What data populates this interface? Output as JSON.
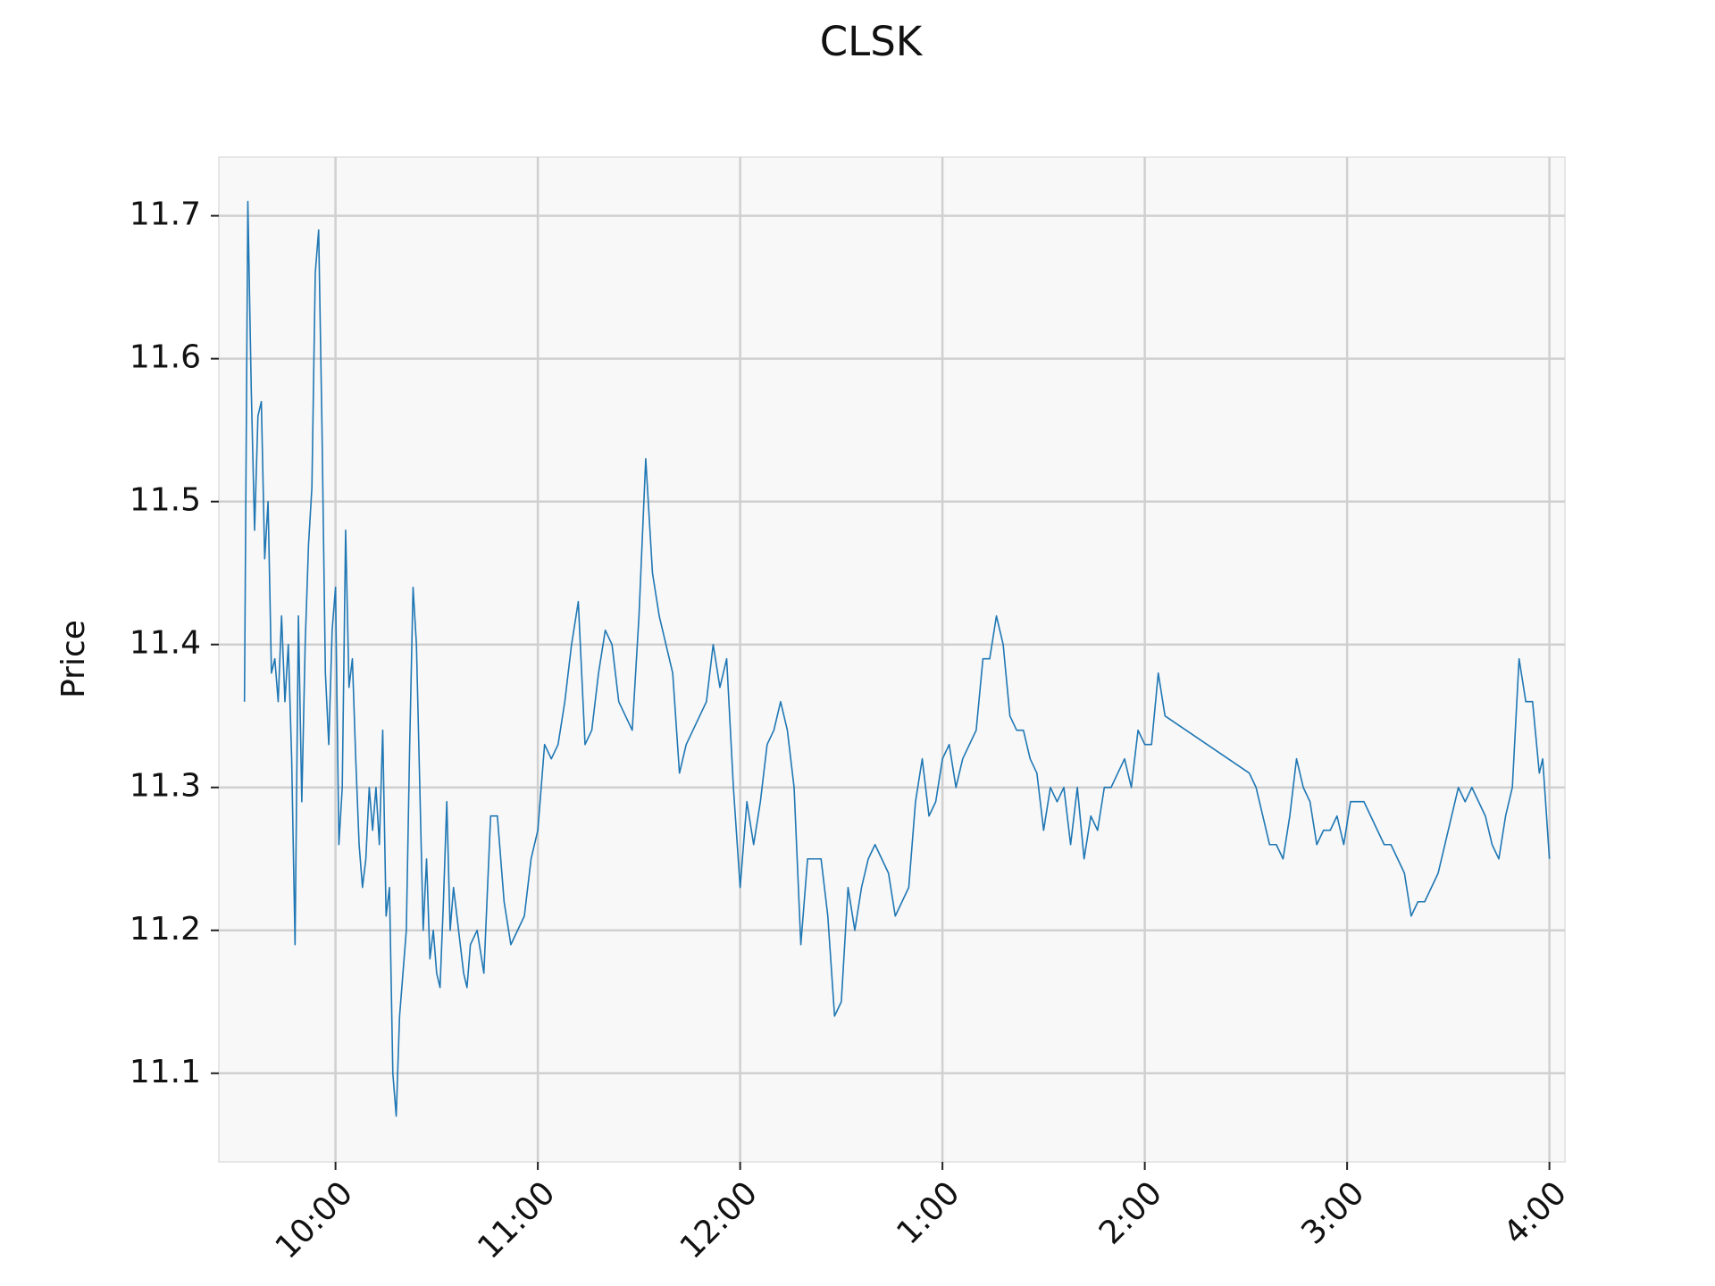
{
  "chart_data": {
    "type": "line",
    "title": "CLSK",
    "y_label": "Price",
    "color": "#1f77b4",
    "grid": true,
    "x": [
      573,
      574,
      575,
      576,
      577,
      578,
      579,
      580,
      581,
      582,
      583,
      584,
      585,
      586,
      587,
      588,
      589,
      590,
      591,
      592,
      593,
      594,
      595,
      596,
      597,
      598,
      599,
      600,
      601,
      602,
      603,
      604,
      605,
      606,
      607,
      608,
      609,
      610,
      611,
      612,
      613,
      614,
      615,
      616,
      617,
      618,
      619,
      620,
      621,
      622,
      623,
      624,
      625,
      626,
      627,
      628,
      629,
      630,
      631,
      632,
      633,
      634,
      635,
      636,
      637,
      638,
      639,
      640,
      642,
      644,
      646,
      648,
      650,
      652,
      654,
      656,
      658,
      660,
      662,
      664,
      666,
      668,
      670,
      672,
      674,
      676,
      678,
      680,
      682,
      684,
      686,
      688,
      690,
      692,
      694,
      696,
      698,
      700,
      702,
      704,
      706,
      708,
      710,
      712,
      714,
      716,
      718,
      720,
      722,
      724,
      726,
      728,
      730,
      732,
      734,
      736,
      738,
      740,
      742,
      744,
      746,
      748,
      750,
      752,
      754,
      756,
      758,
      760,
      762,
      764,
      766,
      768,
      770,
      772,
      774,
      776,
      778,
      780,
      782,
      784,
      786,
      788,
      790,
      792,
      794,
      796,
      798,
      800,
      802,
      804,
      806,
      808,
      810,
      812,
      814,
      816,
      818,
      820,
      822,
      824,
      826,
      828,
      830,
      832,
      834,
      836,
      838,
      840,
      842,
      844,
      846,
      871,
      873,
      875,
      877,
      879,
      881,
      883,
      885,
      887,
      889,
      891,
      893,
      895,
      897,
      899,
      901,
      903,
      905,
      907,
      909,
      911,
      913,
      915,
      917,
      919,
      921,
      923,
      925,
      927,
      929,
      931,
      933,
      935,
      937,
      939,
      941,
      943,
      945,
      947,
      949,
      951,
      953,
      955,
      957,
      958,
      960
    ],
    "values": [
      11.36,
      11.71,
      11.58,
      11.48,
      11.56,
      11.57,
      11.46,
      11.5,
      11.38,
      11.39,
      11.36,
      11.42,
      11.36,
      11.4,
      11.32,
      11.19,
      11.42,
      11.29,
      11.4,
      11.47,
      11.51,
      11.66,
      11.69,
      11.55,
      11.38,
      11.33,
      11.41,
      11.44,
      11.26,
      11.3,
      11.48,
      11.37,
      11.39,
      11.32,
      11.26,
      11.23,
      11.25,
      11.3,
      11.27,
      11.3,
      11.26,
      11.34,
      11.21,
      11.23,
      11.1,
      11.07,
      11.14,
      11.17,
      11.2,
      11.33,
      11.44,
      11.4,
      11.3,
      11.2,
      11.25,
      11.18,
      11.2,
      11.17,
      11.16,
      11.22,
      11.29,
      11.2,
      11.23,
      11.21,
      11.19,
      11.17,
      11.16,
      11.19,
      11.2,
      11.17,
      11.28,
      11.28,
      11.22,
      11.19,
      11.2,
      11.21,
      11.25,
      11.27,
      11.33,
      11.32,
      11.33,
      11.36,
      11.4,
      11.43,
      11.33,
      11.34,
      11.38,
      11.41,
      11.4,
      11.36,
      11.35,
      11.34,
      11.42,
      11.53,
      11.45,
      11.42,
      11.4,
      11.38,
      11.31,
      11.33,
      11.34,
      11.35,
      11.36,
      11.4,
      11.37,
      11.39,
      11.3,
      11.23,
      11.29,
      11.26,
      11.29,
      11.33,
      11.34,
      11.36,
      11.34,
      11.3,
      11.19,
      11.25,
      11.25,
      11.25,
      11.21,
      11.14,
      11.15,
      11.23,
      11.2,
      11.23,
      11.25,
      11.26,
      11.25,
      11.24,
      11.21,
      11.22,
      11.23,
      11.29,
      11.32,
      11.28,
      11.29,
      11.32,
      11.33,
      11.3,
      11.32,
      11.33,
      11.34,
      11.39,
      11.39,
      11.42,
      11.4,
      11.35,
      11.34,
      11.34,
      11.32,
      11.31,
      11.27,
      11.3,
      11.29,
      11.3,
      11.26,
      11.3,
      11.25,
      11.28,
      11.27,
      11.3,
      11.3,
      11.31,
      11.32,
      11.3,
      11.34,
      11.33,
      11.33,
      11.38,
      11.35,
      11.31,
      11.3,
      11.28,
      11.26,
      11.26,
      11.25,
      11.28,
      11.32,
      11.3,
      11.29,
      11.26,
      11.27,
      11.27,
      11.28,
      11.26,
      11.29,
      11.29,
      11.29,
      11.28,
      11.27,
      11.26,
      11.26,
      11.25,
      11.24,
      11.21,
      11.22,
      11.22,
      11.23,
      11.24,
      11.26,
      11.28,
      11.3,
      11.29,
      11.3,
      11.29,
      11.28,
      11.26,
      11.25,
      11.28,
      11.3,
      11.39,
      11.36,
      11.36,
      11.31,
      11.32,
      11.25
    ],
    "xlim": [
      565.4,
      964.6
    ],
    "xticks": [
      {
        "value": 600,
        "label": "10:00"
      },
      {
        "value": 660,
        "label": "11:00"
      },
      {
        "value": 720,
        "label": "12:00"
      },
      {
        "value": 780,
        "label": "1:00"
      },
      {
        "value": 840,
        "label": "2:00"
      },
      {
        "value": 900,
        "label": "3:00"
      },
      {
        "value": 960,
        "label": "4:00"
      }
    ],
    "ylim": [
      11.038,
      11.741
    ],
    "yticks": [
      11.1,
      11.2,
      11.3,
      11.4,
      11.5,
      11.6,
      11.7
    ]
  }
}
